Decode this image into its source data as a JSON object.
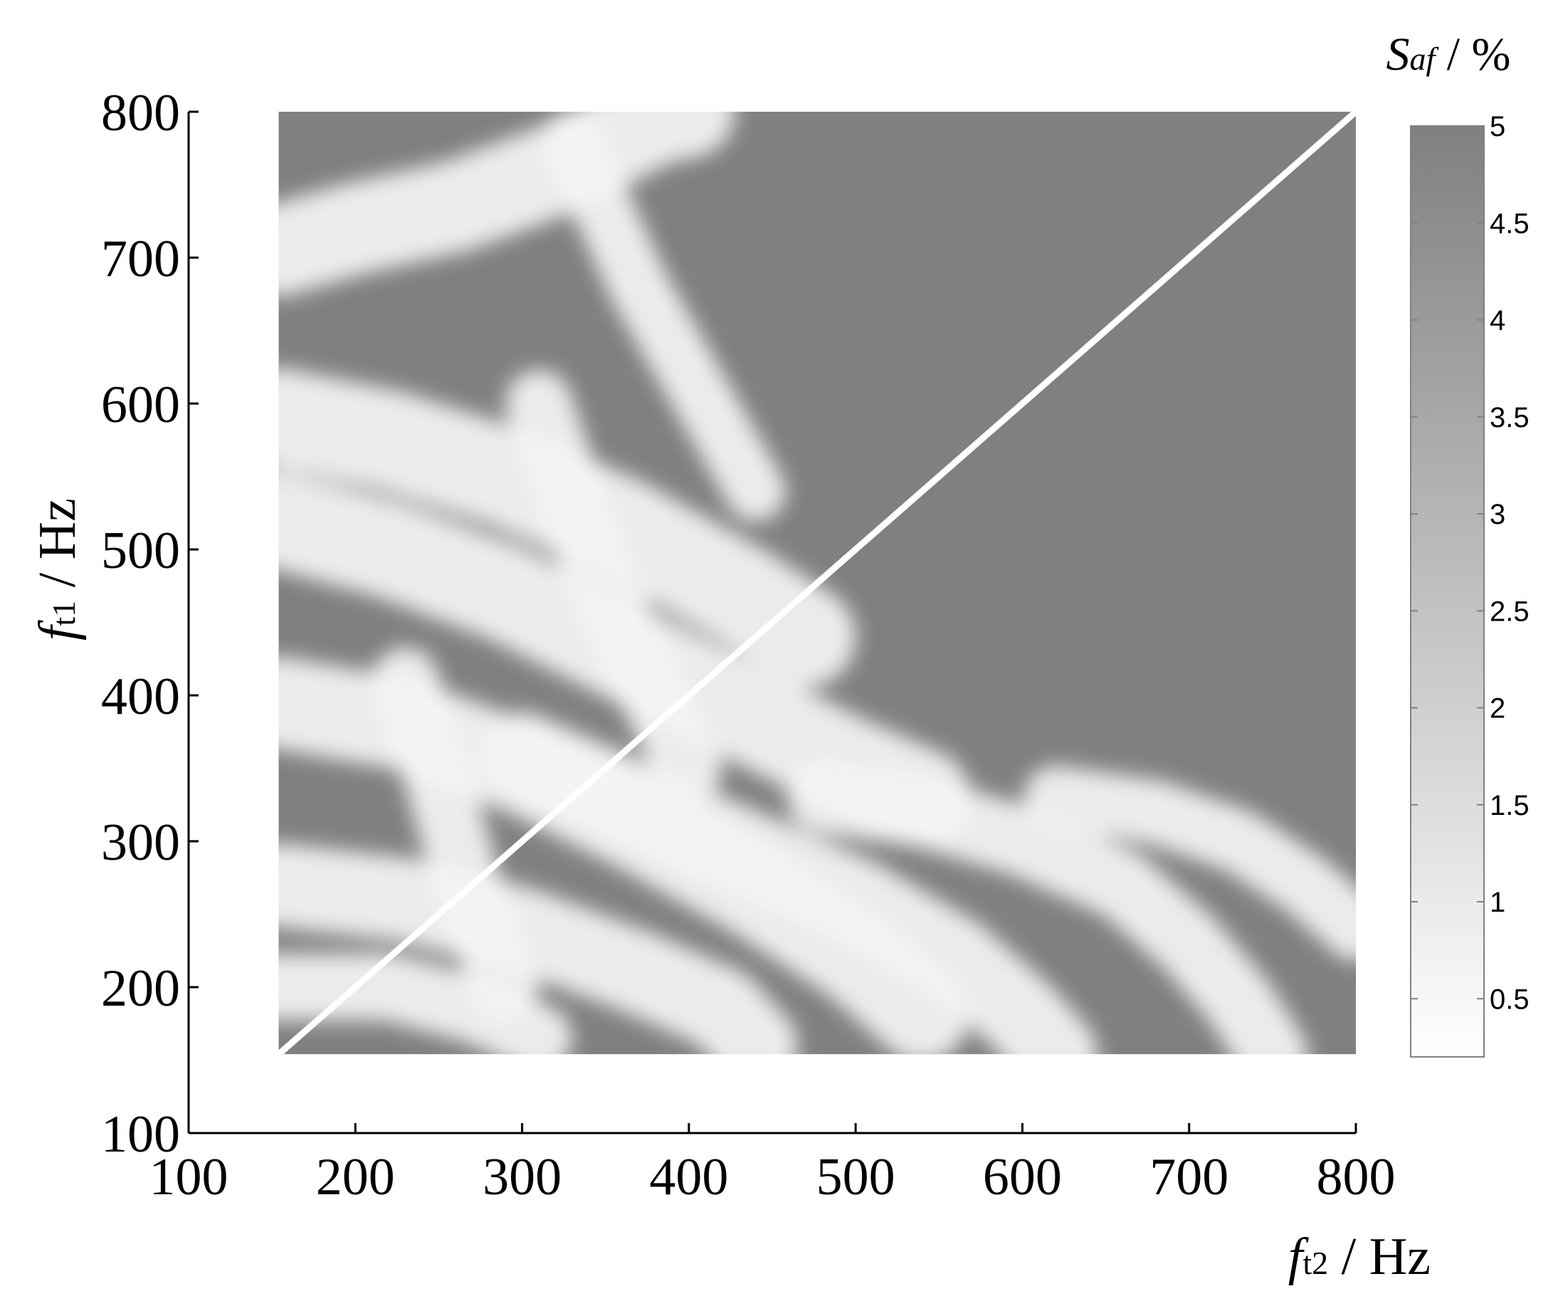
{
  "chart_data": {
    "type": "heatmap",
    "xlabel": {
      "symbol": "f",
      "subscript": "t2",
      "unit": " / Hz"
    },
    "ylabel": {
      "symbol": "f",
      "subscript": "t1",
      "unit": " / Hz"
    },
    "xlim": [
      100,
      800
    ],
    "ylim": [
      100,
      800
    ],
    "xticks": [
      "100",
      "200",
      "300",
      "400",
      "500",
      "600",
      "700",
      "800"
    ],
    "yticks": [
      "100",
      "200",
      "300",
      "400",
      "500",
      "600",
      "700",
      "800"
    ],
    "data_extent": {
      "x": [
        154,
        800
      ],
      "y": [
        154,
        800
      ]
    },
    "colorbar": {
      "title": {
        "symbol": "S",
        "subscript": "af",
        "unit": " / %"
      },
      "range": [
        0.2,
        5
      ],
      "ticks": [
        "0.5",
        "1",
        "1.5",
        "2",
        "2.5",
        "3",
        "3.5",
        "4",
        "4.5",
        "5"
      ],
      "tick_values": [
        0.5,
        1,
        1.5,
        2,
        2.5,
        3,
        3.5,
        4,
        4.5,
        5
      ],
      "color_low": "#ffffff",
      "color_high": "#808080"
    },
    "saturated_value": 5,
    "grid": false,
    "annotations": [
      {
        "type": "diagonal-line",
        "from": [
          154,
          154
        ],
        "to": [
          800,
          800
        ],
        "value": 0
      }
    ],
    "light_bands": [
      {
        "name": "band-1",
        "points": [
          [
            154,
            705
          ],
          [
            200,
            720
          ],
          [
            260,
            735
          ],
          [
            320,
            760
          ],
          [
            380,
            795
          ],
          [
            400,
            800
          ]
        ],
        "width": 55
      },
      {
        "name": "band-2",
        "points": [
          [
            154,
            590
          ],
          [
            220,
            575
          ],
          [
            290,
            550
          ],
          [
            360,
            515
          ],
          [
            430,
            470
          ],
          [
            470,
            440
          ]
        ],
        "width": 60
      },
      {
        "name": "band-3",
        "points": [
          [
            154,
            520
          ],
          [
            220,
            500
          ],
          [
            290,
            470
          ],
          [
            360,
            430
          ],
          [
            430,
            390
          ],
          [
            490,
            355
          ],
          [
            540,
            330
          ]
        ],
        "width": 58
      },
      {
        "name": "band-4",
        "points": [
          [
            154,
            395
          ],
          [
            230,
            380
          ],
          [
            300,
            350
          ],
          [
            370,
            310
          ],
          [
            440,
            265
          ],
          [
            500,
            220
          ],
          [
            540,
            180
          ]
        ],
        "width": 55
      },
      {
        "name": "band-5",
        "points": [
          [
            154,
            270
          ],
          [
            230,
            260
          ],
          [
            300,
            240
          ],
          [
            370,
            210
          ],
          [
            420,
            185
          ],
          [
            440,
            160
          ]
        ],
        "width": 50
      },
      {
        "name": "band-6",
        "points": [
          [
            154,
            200
          ],
          [
            220,
            200
          ],
          [
            270,
            185
          ],
          [
            310,
            165
          ]
        ],
        "width": 40
      },
      {
        "name": "band-7",
        "points": [
          [
            300,
            360
          ],
          [
            360,
            330
          ],
          [
            420,
            300
          ],
          [
            500,
            260
          ],
          [
            560,
            220
          ],
          [
            600,
            180
          ],
          [
            620,
            154
          ]
        ],
        "width": 50
      },
      {
        "name": "band-8",
        "points": [
          [
            480,
            330
          ],
          [
            540,
            320
          ],
          [
            600,
            300
          ],
          [
            660,
            270
          ],
          [
            700,
            230
          ],
          [
            730,
            190
          ],
          [
            750,
            154
          ]
        ],
        "width": 42
      },
      {
        "name": "band-9",
        "points": [
          [
            620,
            330
          ],
          [
            680,
            320
          ],
          [
            730,
            300
          ],
          [
            770,
            270
          ],
          [
            800,
            240
          ]
        ],
        "width": 38
      },
      {
        "name": "band-10",
        "points": [
          [
            230,
            410
          ],
          [
            250,
            340
          ],
          [
            270,
            260
          ],
          [
            290,
            200
          ]
        ],
        "width": 40
      },
      {
        "name": "band-11",
        "points": [
          [
            310,
            600
          ],
          [
            340,
            500
          ],
          [
            370,
            420
          ],
          [
            400,
            350
          ]
        ],
        "width": 40
      },
      {
        "name": "band-12",
        "points": [
          [
            330,
            780
          ],
          [
            370,
            680
          ],
          [
            410,
            600
          ],
          [
            440,
            540
          ]
        ],
        "width": 36
      }
    ]
  }
}
